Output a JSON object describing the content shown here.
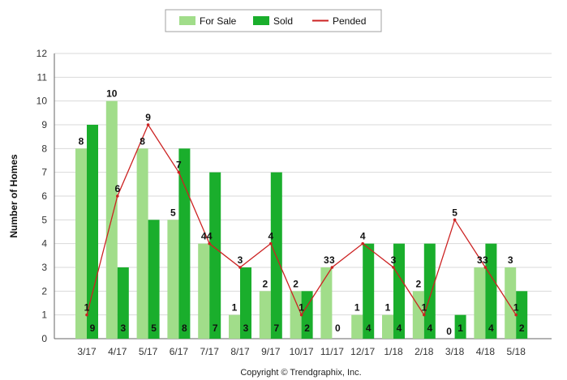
{
  "chart_data": {
    "type": "bar",
    "ylabel": "Number of Homes",
    "xlabel": "",
    "ylim": [
      0,
      12
    ],
    "yticks": [
      0,
      1,
      2,
      3,
      4,
      5,
      6,
      7,
      8,
      9,
      10,
      11,
      12
    ],
    "grid": true,
    "legend_position": "top-center",
    "categories": [
      "3/17",
      "4/17",
      "5/17",
      "6/17",
      "7/17",
      "8/17",
      "9/17",
      "10/17",
      "11/17",
      "12/17",
      "1/18",
      "2/18",
      "3/18",
      "4/18",
      "5/18"
    ],
    "series": [
      {
        "name": "For Sale",
        "kind": "bar",
        "color": "#a1dd8a",
        "values": [
          8,
          10,
          8,
          5,
          4,
          1,
          2,
          2,
          3,
          1,
          1,
          2,
          0,
          3,
          3
        ]
      },
      {
        "name": "Sold",
        "kind": "bar",
        "color": "#1aae2c",
        "values": [
          9,
          3,
          5,
          8,
          7,
          3,
          7,
          2,
          0,
          4,
          4,
          4,
          1,
          4,
          2
        ]
      },
      {
        "name": "Pended",
        "kind": "line",
        "color": "#cc2222",
        "values": [
          1,
          6,
          9,
          7,
          4,
          3,
          4,
          1,
          3,
          4,
          3,
          1,
          5,
          3,
          1
        ]
      }
    ],
    "footer": "Copyright © Trendgraphix, Inc."
  }
}
